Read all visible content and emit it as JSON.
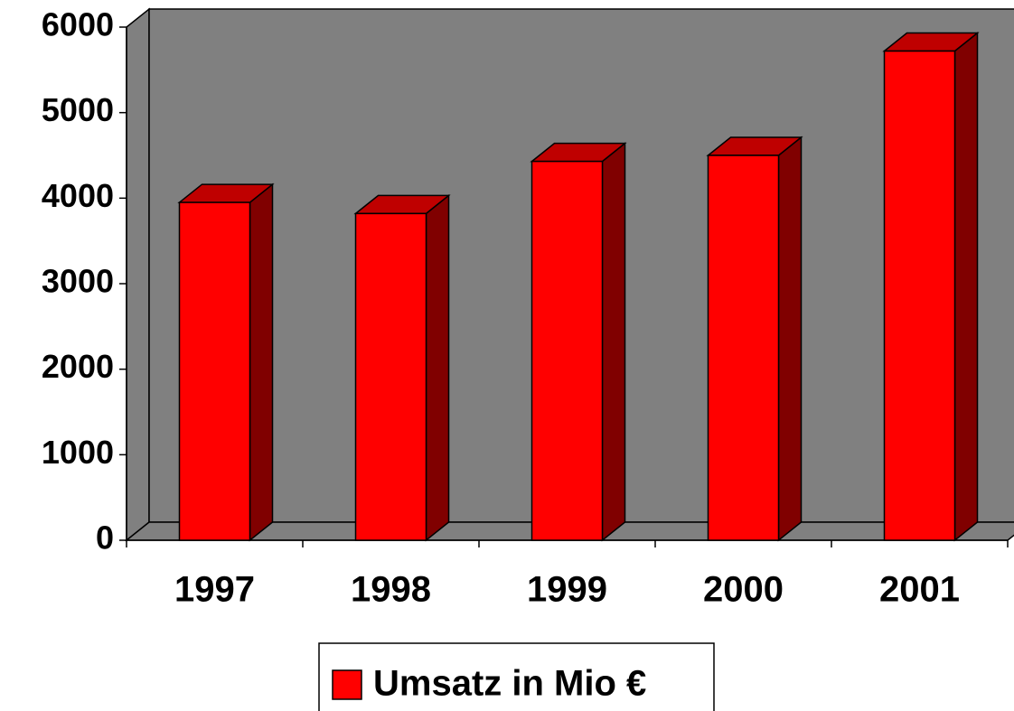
{
  "chart_data": {
    "type": "bar",
    "categories": [
      "1997",
      "1998",
      "1999",
      "2000",
      "2001"
    ],
    "series": [
      {
        "name": "Umsatz in Mio €",
        "color": "#ff0000",
        "values": [
          3950,
          3820,
          4430,
          4500,
          5720
        ]
      }
    ],
    "ylim": [
      0,
      6000
    ],
    "yticks": [
      0,
      1000,
      2000,
      3000,
      4000,
      5000,
      6000
    ],
    "grid": false,
    "legend": "bottom"
  }
}
